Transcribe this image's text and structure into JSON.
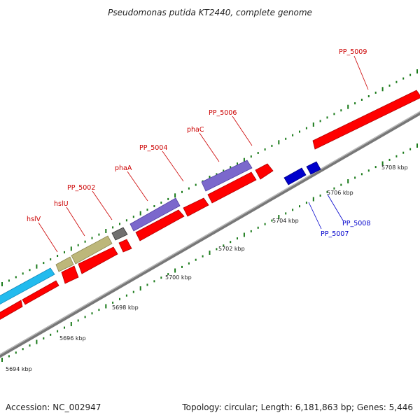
{
  "title": "Pseudomonas putida KT2440, complete genome",
  "footer": {
    "accession": "Accession: NC_002947",
    "topology": "Topology: circular; Length: 6,181,863 bp; Genes: 5,446"
  },
  "colors": {
    "forward_label": "#cc0000",
    "reverse_label": "#0000cc",
    "backbone": "#888888",
    "tick": "#1a7a1a",
    "cds": "#ff0000",
    "cyan": "#22bbee",
    "khaki": "#bdb77a",
    "grey": "#707070",
    "purple": "#7b68cc",
    "blue": "#0000cc"
  },
  "ruler": {
    "unit": "kbp",
    "labels": [
      "5694 kbp",
      "5696 kbp",
      "5698 kbp",
      "5700 kbp",
      "5702 kbp",
      "5704 kbp",
      "5706 kbp",
      "5708 kbp"
    ]
  },
  "gene_labels": [
    {
      "text": "hslV",
      "strand": "forward"
    },
    {
      "text": "hslU",
      "strand": "forward"
    },
    {
      "text": "PP_5002",
      "strand": "forward"
    },
    {
      "text": "phaA",
      "strand": "forward"
    },
    {
      "text": "PP_5004",
      "strand": "forward"
    },
    {
      "text": "phaC",
      "strand": "forward"
    },
    {
      "text": "PP_5006",
      "strand": "forward"
    },
    {
      "text": "PP_5009",
      "strand": "forward"
    },
    {
      "text": "PP_5007",
      "strand": "reverse"
    },
    {
      "text": "PP_5008",
      "strand": "reverse"
    }
  ]
}
